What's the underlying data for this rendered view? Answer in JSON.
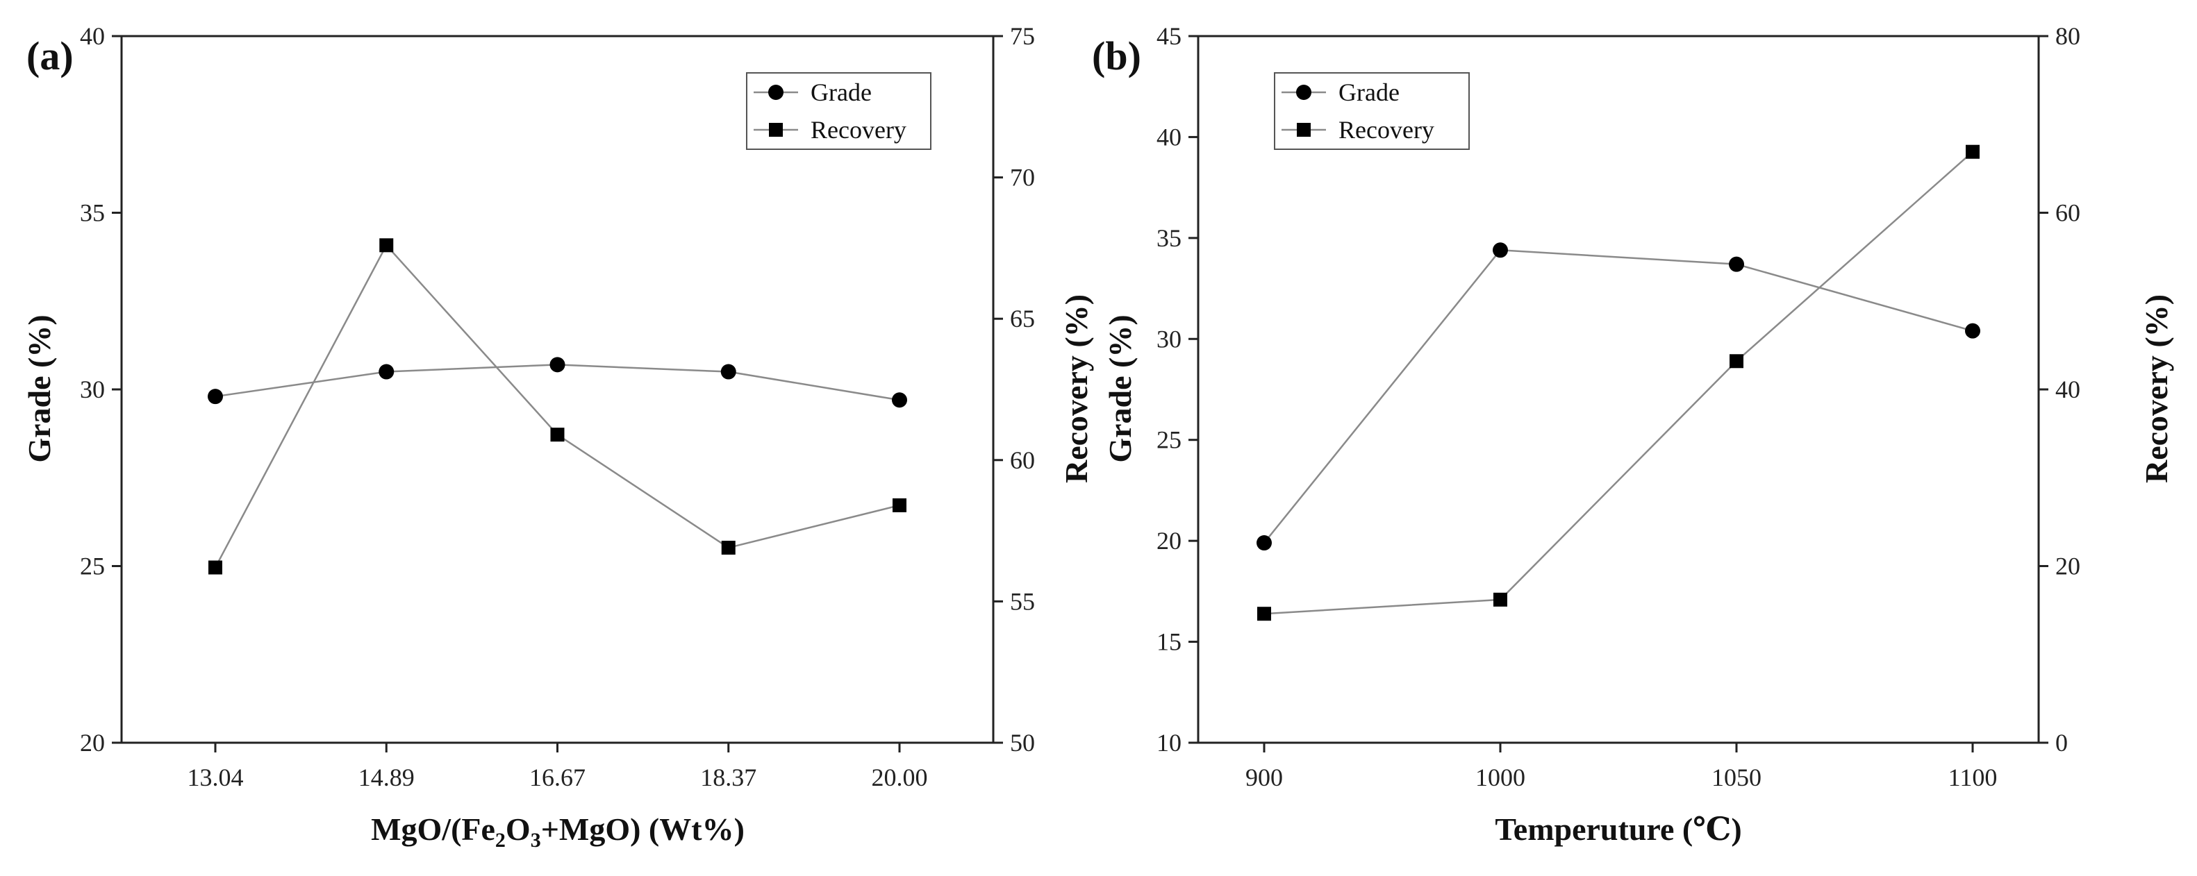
{
  "chart_data": [
    {
      "type": "line",
      "panel_label": "(a)",
      "categories": [
        "13.04",
        "14.89",
        "16.67",
        "18.37",
        "20.00"
      ],
      "xlabel_parts": [
        {
          "text": "MgO/(Fe",
          "shift": "normal"
        },
        {
          "text": "2",
          "shift": "sub"
        },
        {
          "text": "O",
          "shift": "normal"
        },
        {
          "text": "3",
          "shift": "sub"
        },
        {
          "text": "+MgO) (Wt%)",
          "shift": "normal"
        }
      ],
      "ylabel_left": "Grade (%)",
      "ylabel_right": "Recovery (%)",
      "ylim_left": [
        20,
        40
      ],
      "yticks_left": [
        20,
        25,
        30,
        35,
        40
      ],
      "ylim_right": [
        50,
        75
      ],
      "yticks_right": [
        50,
        55,
        60,
        65,
        70,
        75
      ],
      "legend_position": "top-right",
      "series": [
        {
          "name": "Grade",
          "axis": "left",
          "marker": "circle",
          "values": [
            29.8,
            30.5,
            30.7,
            30.5,
            29.7
          ]
        },
        {
          "name": "Recovery",
          "axis": "right",
          "marker": "square",
          "values": [
            56.2,
            67.6,
            60.9,
            56.9,
            58.4
          ]
        }
      ]
    },
    {
      "type": "line",
      "panel_label": "(b)",
      "categories": [
        "900",
        "1000",
        "1050",
        "1100"
      ],
      "xlabel_parts": [
        {
          "text": "Temperuture (℃)",
          "shift": "normal"
        }
      ],
      "ylabel_left": "Grade (%)",
      "ylabel_right": "Recovery (%)",
      "ylim_left": [
        10,
        45
      ],
      "yticks_left": [
        10,
        15,
        20,
        25,
        30,
        35,
        40,
        45
      ],
      "ylim_right": [
        0,
        80
      ],
      "yticks_right": [
        0,
        20,
        40,
        60,
        80
      ],
      "legend_position": "top-left",
      "series": [
        {
          "name": "Grade",
          "axis": "left",
          "marker": "circle",
          "values": [
            19.9,
            34.4,
            33.7,
            30.4
          ]
        },
        {
          "name": "Recovery",
          "axis": "right",
          "marker": "square",
          "values": [
            14.6,
            16.2,
            43.2,
            66.9
          ]
        }
      ]
    }
  ]
}
